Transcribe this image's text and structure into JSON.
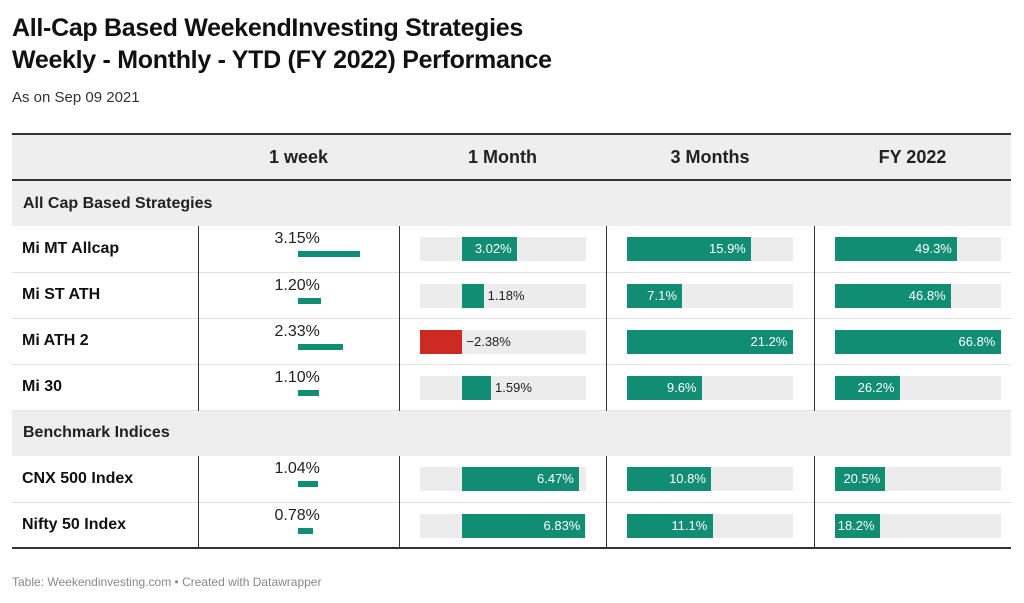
{
  "title_line1": "All-Cap Based WeekendInvesting Strategies",
  "title_line2": "Weekly - Monthly - YTD (FY 2022)  Performance",
  "subtitle": "As on Sep 09 2021",
  "source": "Table: Weekendinvesting.com • Created with Datawrapper",
  "colors": {
    "positive": "#118d74",
    "negative": "#cc2a22",
    "track": "#ececec"
  },
  "chart_data": {
    "type": "table",
    "columns": [
      "",
      "1 week",
      "1 Month",
      "3 Months",
      "FY 2022"
    ],
    "ranges": {
      "week": [
        0,
        3.15
      ],
      "month": [
        -2.38,
        6.83
      ],
      "three_months": [
        0,
        21.2
      ],
      "fy": [
        0,
        66.8
      ]
    },
    "groups": [
      {
        "name": "All Cap Based Strategies",
        "rows": [
          {
            "name": "Mi MT Allcap",
            "week": 3.15,
            "week_label": "3.15%",
            "month": 3.02,
            "month_label": "3.02%",
            "three_months": 15.9,
            "three_months_label": "15.9%",
            "fy": 49.3,
            "fy_label": "49.3%"
          },
          {
            "name": "Mi ST ATH",
            "week": 1.2,
            "week_label": "1.20%",
            "month": 1.18,
            "month_label": "1.18%",
            "three_months": 7.1,
            "three_months_label": "7.1%",
            "fy": 46.8,
            "fy_label": "46.8%"
          },
          {
            "name": "Mi ATH 2",
            "week": 2.33,
            "week_label": "2.33%",
            "month": -2.38,
            "month_label": "−2.38%",
            "three_months": 21.2,
            "three_months_label": "21.2%",
            "fy": 66.8,
            "fy_label": "66.8%"
          },
          {
            "name": "Mi 30",
            "week": 1.1,
            "week_label": "1.10%",
            "month": 1.59,
            "month_label": "1.59%",
            "three_months": 9.6,
            "three_months_label": "9.6%",
            "fy": 26.2,
            "fy_label": "26.2%"
          }
        ]
      },
      {
        "name": "Benchmark Indices",
        "rows": [
          {
            "name": "CNX 500 Index",
            "week": 1.04,
            "week_label": "1.04%",
            "month": 6.47,
            "month_label": "6.47%",
            "three_months": 10.8,
            "three_months_label": "10.8%",
            "fy": 20.5,
            "fy_label": "20.5%"
          },
          {
            "name": "Nifty 50 Index",
            "week": 0.78,
            "week_label": "0.78%",
            "month": 6.83,
            "month_label": "6.83%",
            "three_months": 11.1,
            "three_months_label": "11.1%",
            "fy": 18.2,
            "fy_label": "18.2%"
          }
        ]
      }
    ]
  }
}
